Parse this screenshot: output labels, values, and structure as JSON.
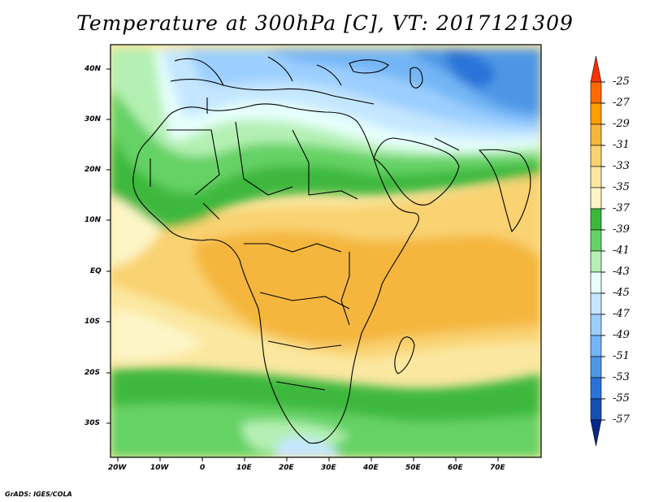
{
  "title": "Temperature at 300hPa [C], VT: 2017121309",
  "footer": "GrADS: IGES/COLA",
  "map": {
    "region": "Africa",
    "lon_range": [
      -22,
      80
    ],
    "lat_range": [
      -36,
      45
    ],
    "x_ticks": [
      "20W",
      "10W",
      "0",
      "10E",
      "20E",
      "30E",
      "40E",
      "50E",
      "60E",
      "70E"
    ],
    "y_ticks": [
      "40N",
      "30N",
      "20N",
      "10N",
      "EQ",
      "10S",
      "20S",
      "30S"
    ]
  },
  "colorbar": {
    "labels": [
      "-25",
      "-27",
      "-29",
      "-31",
      "-33",
      "-35",
      "-37",
      "-39",
      "-41",
      "-43",
      "-45",
      "-47",
      "-49",
      "-51",
      "-53",
      "-55",
      "-57"
    ],
    "colors": [
      "#ff3000",
      "#ff6a00",
      "#ff9f00",
      "#f4b63c",
      "#f9d271",
      "#fbe7a0",
      "#fdf5c6",
      "#3cb83c",
      "#65d265",
      "#b4f0b4",
      "#e6fffb",
      "#c4e6ff",
      "#9ccfff",
      "#73b5f5",
      "#4d96e6",
      "#2b73d8",
      "#1450b4",
      "#08288c"
    ]
  },
  "chart_data": {
    "type": "heatmap",
    "title": "Temperature at 300hPa [C], VT: 2017121309",
    "variable": "Temperature at 300hPa",
    "units": "C",
    "valid_time": "2017121309",
    "levels": [
      -57,
      -55,
      -53,
      -51,
      -49,
      -47,
      -45,
      -43,
      -41,
      -39,
      -37,
      -35,
      -33,
      -31,
      -29,
      -27,
      -25
    ],
    "x_ticks": [
      "20W",
      "10W",
      "0",
      "10E",
      "20E",
      "30E",
      "40E",
      "50E",
      "60E",
      "70E"
    ],
    "y_ticks": [
      "40N",
      "30N",
      "20N",
      "10N",
      "EQ",
      "10S",
      "20S",
      "30S"
    ]
  }
}
